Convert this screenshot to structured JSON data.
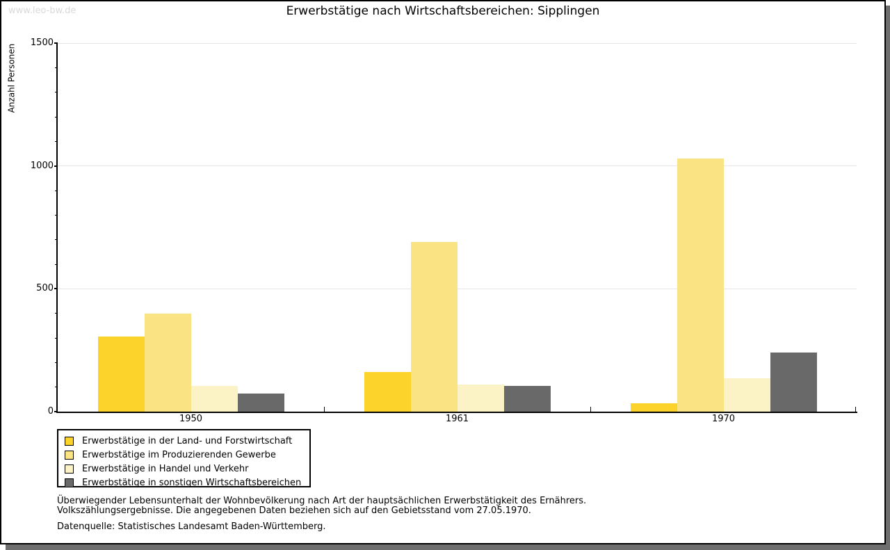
{
  "page": {
    "watermark": "www.leo-bw.de",
    "title": "Erwerbstätige nach Wirtschaftsbereichen: Sipplingen"
  },
  "chart_data": {
    "type": "bar",
    "title": "Erwerbstätige nach Wirtschaftsbereichen: Sipplingen",
    "xlabel": "",
    "ylabel": "Anzahl Personen",
    "categories": [
      "1950",
      "1961",
      "1970"
    ],
    "series": [
      {
        "name": "Erwerbstätige in der Land- und Forstwirtschaft",
        "color": "#fcd32b",
        "values": [
          305,
          160,
          35
        ]
      },
      {
        "name": "Erwerbstätige im Produzierenden Gewerbe",
        "color": "#fae383",
        "values": [
          400,
          690,
          1030
        ]
      },
      {
        "name": "Erwerbstätige in Handel und Verkehr",
        "color": "#fbf3c5",
        "values": [
          105,
          110,
          135
        ]
      },
      {
        "name": "Erwerbstätige in sonstigen Wirtschaftsbereichen",
        "color": "#696969",
        "values": [
          75,
          105,
          240
        ]
      }
    ],
    "ylim": [
      0,
      1500
    ],
    "yticks": [
      0,
      500,
      1000,
      1500
    ],
    "y_minor_step": 100,
    "grid": true,
    "legend_position": "bottom-left"
  },
  "footnotes": {
    "line1": "Überwiegender Lebensunterhalt der Wohnbevölkerung nach Art der hauptsächlichen Erwerbstätigkeit des Ernährers.",
    "line2": "Volkszählungsergebnisse. Die angegebenen Daten beziehen sich auf den Gebietsstand vom 27.05.1970.",
    "source": "Datenquelle: Statistisches Landesamt Baden-Württemberg."
  }
}
